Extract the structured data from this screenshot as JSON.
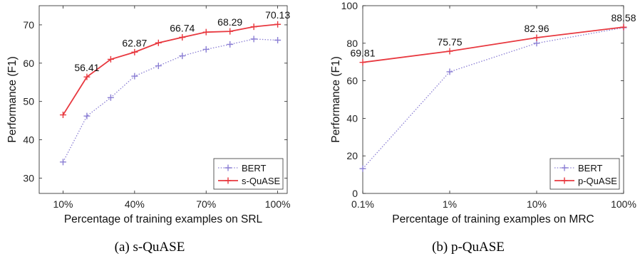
{
  "chart_data": [
    {
      "type": "line",
      "caption": "(a)  s-QuASE",
      "xlabel": "Percentage of training examples on SRL",
      "ylabel": "Performance (F1)",
      "x": [
        10,
        20,
        30,
        40,
        50,
        60,
        70,
        80,
        90,
        100
      ],
      "xticks": [
        10,
        40,
        70,
        100
      ],
      "xtick_labels": [
        "10%",
        "40%",
        "70%",
        "100%"
      ],
      "xlim": [
        0,
        104
      ],
      "ylim": [
        26,
        75
      ],
      "yticks": [
        30,
        40,
        50,
        60,
        70
      ],
      "ytick_labels": [
        "30",
        "40",
        "50",
        "60",
        "70"
      ],
      "grid": false,
      "legend_position": "bottom-right",
      "series": [
        {
          "name": "BERT",
          "style": "dotted",
          "marker": "+",
          "color": "#8b7fd4",
          "values": [
            34.2,
            46.2,
            51.0,
            56.6,
            59.3,
            61.9,
            63.6,
            64.9,
            66.3,
            66.0
          ]
        },
        {
          "name": "s-QuASE",
          "style": "solid",
          "marker": "+",
          "color": "#e8383f",
          "values": [
            46.5,
            56.41,
            61.0,
            62.87,
            65.3,
            66.74,
            68.1,
            68.29,
            69.5,
            70.13
          ]
        }
      ],
      "annotations": [
        {
          "x": 20,
          "y": 56.41,
          "text": "56.41"
        },
        {
          "x": 40,
          "y": 62.87,
          "text": "62.87"
        },
        {
          "x": 60,
          "y": 66.74,
          "text": "66.74"
        },
        {
          "x": 80,
          "y": 68.29,
          "text": "68.29"
        },
        {
          "x": 100,
          "y": 70.13,
          "text": "70.13"
        }
      ]
    },
    {
      "type": "line",
      "caption": "(b)  p-QuASE",
      "xlabel": "Percentage of training examples on MRC",
      "ylabel": "Performance (F1)",
      "x_scale": "log",
      "x": [
        0.1,
        1,
        10,
        100
      ],
      "xticks": [
        0.1,
        1,
        10,
        100
      ],
      "xtick_labels": [
        "0.1%",
        "1%",
        "10%",
        "100%"
      ],
      "xlim": [
        0.1,
        100
      ],
      "ylim": [
        0,
        100
      ],
      "yticks": [
        0,
        20,
        40,
        60,
        80,
        100
      ],
      "ytick_labels": [
        "0",
        "20",
        "40",
        "60",
        "80",
        "100"
      ],
      "grid": false,
      "legend_position": "bottom-right",
      "series": [
        {
          "name": "BERT",
          "style": "dotted",
          "marker": "+",
          "color": "#8b7fd4",
          "values": [
            13.2,
            64.8,
            80.0,
            88.3
          ]
        },
        {
          "name": "p-QuASE",
          "style": "solid",
          "marker": "+",
          "color": "#e8383f",
          "values": [
            69.81,
            75.75,
            82.96,
            88.58
          ]
        }
      ],
      "annotations": [
        {
          "x": 0.1,
          "y": 69.81,
          "text": "69.81"
        },
        {
          "x": 1,
          "y": 75.75,
          "text": "75.75"
        },
        {
          "x": 10,
          "y": 82.96,
          "text": "82.96"
        },
        {
          "x": 100,
          "y": 88.58,
          "text": "88.58"
        }
      ]
    }
  ]
}
